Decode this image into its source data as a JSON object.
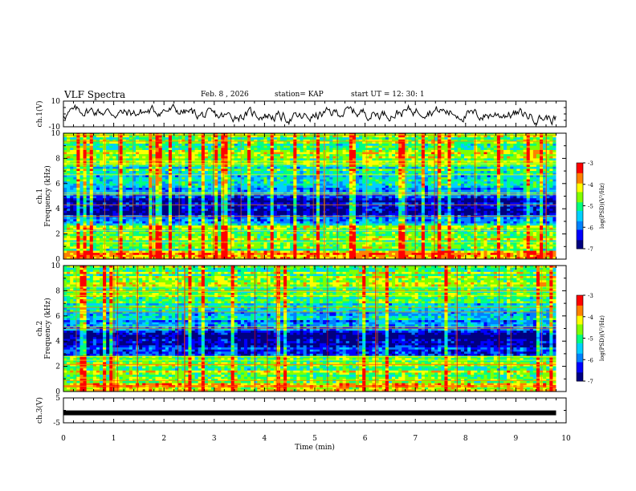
{
  "header": {
    "title": "VLF Spectra",
    "date": "Feb. 8 , 2026",
    "station": "station= KAP",
    "start": "start UT = 12: 30: 1"
  },
  "chart_data": [
    {
      "type": "line",
      "name": "ch1-waveform",
      "ylabel": "ch.1(V)",
      "ylim": [
        -10,
        10
      ],
      "yticks": [
        "10",
        "-10"
      ],
      "xlim": [
        0,
        10
      ],
      "series": [
        {
          "name": "ch.1",
          "color": "#000000",
          "description_values": [
            0,
            2,
            1,
            4,
            -1,
            5,
            2,
            3,
            -2,
            1,
            6,
            0,
            3,
            -1,
            2,
            4,
            -3,
            1,
            5,
            2
          ]
        }
      ]
    },
    {
      "type": "heatmap",
      "name": "ch1-spectrogram",
      "ylabel_line1": "ch.1",
      "ylabel_line2": "Frequency (kHz)",
      "ylim": [
        0,
        10
      ],
      "yticks": [
        "0",
        "2",
        "4",
        "6",
        "8",
        "10"
      ],
      "xlim": [
        0,
        10
      ],
      "data_end_min": 9.8,
      "colorbar": {
        "label": "log(PSD)(V²/Hz)",
        "range": [
          -7,
          -3
        ],
        "ticks": [
          "-3",
          "-4",
          "-5",
          "-6",
          "-7"
        ]
      }
    },
    {
      "type": "heatmap",
      "name": "ch2-spectrogram",
      "ylabel_line1": "ch.2",
      "ylabel_line2": "Frequency (kHz)",
      "ylim": [
        0,
        10
      ],
      "yticks": [
        "0",
        "2",
        "4",
        "6",
        "8",
        "10"
      ],
      "xlim": [
        0,
        10
      ],
      "data_end_min": 9.8,
      "colorbar": {
        "label": "log(PSD)(V²/Hz)",
        "range": [
          -7,
          -3
        ],
        "ticks": [
          "-3",
          "-4",
          "-5",
          "-6",
          "-7"
        ]
      }
    },
    {
      "type": "line",
      "name": "ch3-waveform",
      "ylabel": "ch.3(V)",
      "ylim": [
        -5,
        5
      ],
      "yticks": [
        "5",
        "-5"
      ],
      "xlim": [
        0,
        10
      ],
      "xlabel": "Time (min)",
      "xticks": [
        "0",
        "1",
        "2",
        "3",
        "4",
        "5",
        "6",
        "7",
        "8",
        "9",
        "10"
      ],
      "series": [
        {
          "name": "ch.3",
          "value": -1,
          "color": "#000000"
        }
      ]
    }
  ],
  "colors": {
    "colormap": [
      "#000080",
      "#0000ff",
      "#0080ff",
      "#00d0ff",
      "#00ff80",
      "#80ff00",
      "#ffff00",
      "#ff8000",
      "#ff0000",
      "#ffffff"
    ]
  }
}
